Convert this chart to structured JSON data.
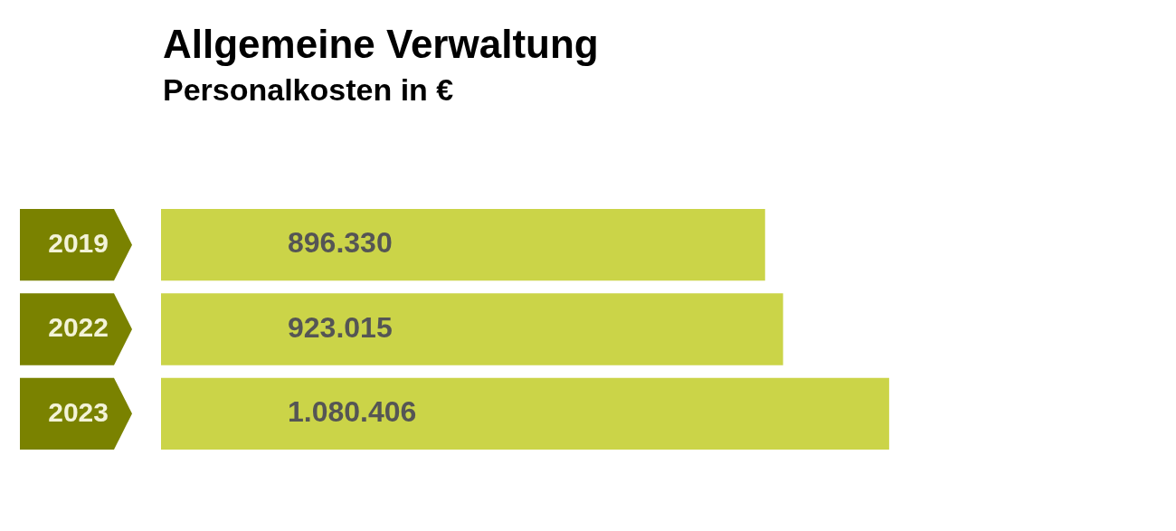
{
  "chart_data": {
    "type": "bar",
    "orientation": "horizontal",
    "title": "Allgemeine Verwaltung",
    "subtitle": "Personalkosten in €",
    "categories": [
      "2019",
      "2022",
      "2023"
    ],
    "values": [
      896330,
      923015,
      1080406
    ],
    "value_labels": [
      "896.330",
      "923.015",
      "1.080.406"
    ],
    "color": "#cbd448",
    "grid": false,
    "legend": false
  }
}
